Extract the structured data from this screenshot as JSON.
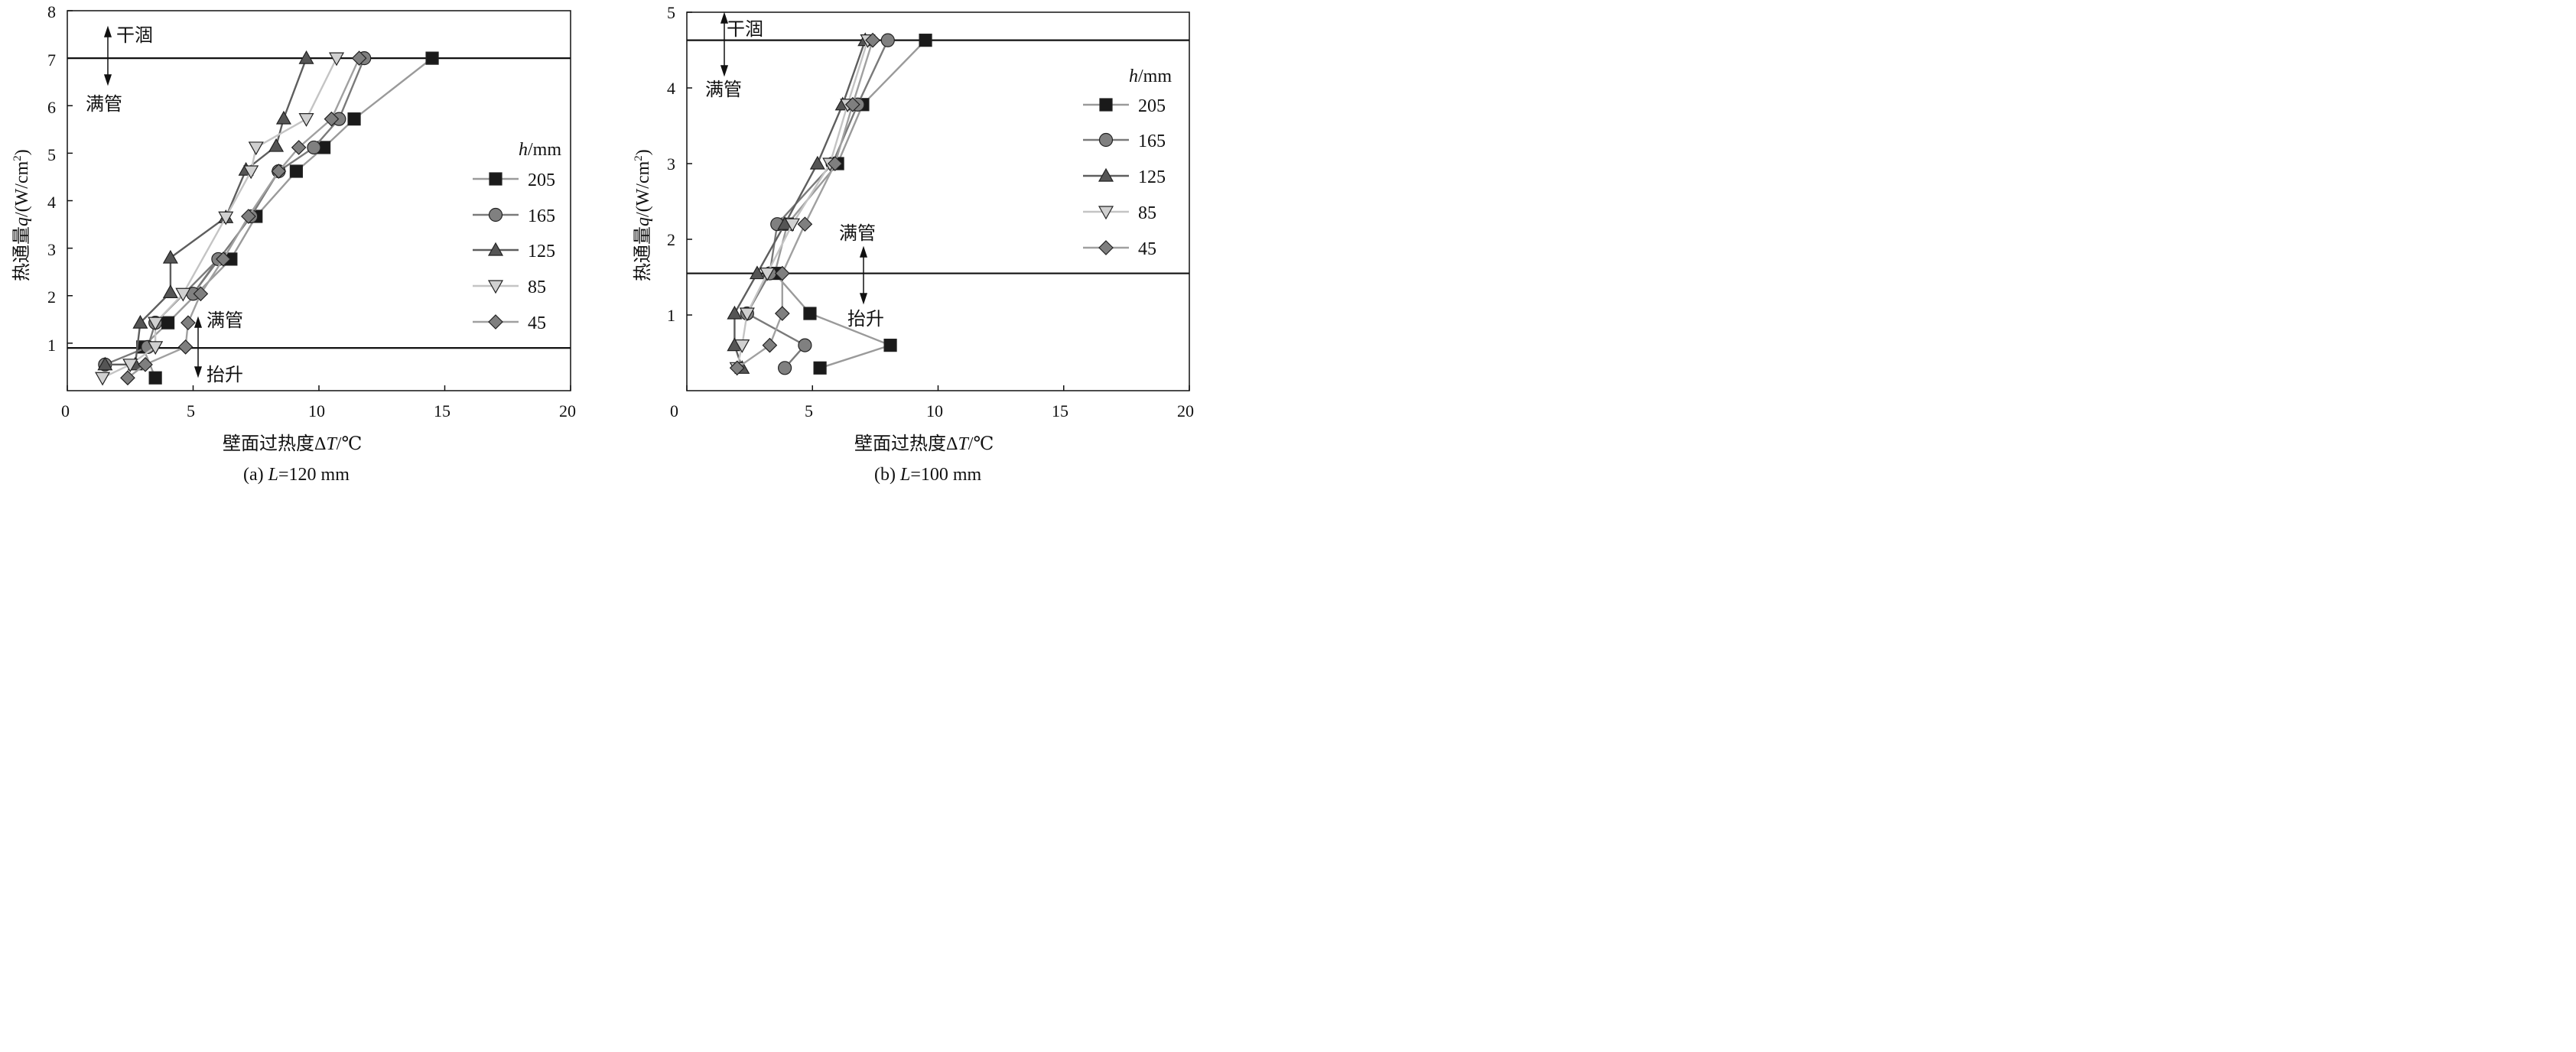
{
  "colors": {
    "205": "#1a1a1a",
    "165": "#808080",
    "125": "#555555",
    "85": "#d0d0d0",
    "45": "#7f7f7f",
    "line205": "#9a9a9a",
    "line165": "#7a7a7a",
    "line125": "#5e5e5e",
    "line85": "#c4c4c4",
    "line45": "#a0a0a0"
  },
  "chart_data": [
    {
      "type": "line",
      "caption": "(a) L=120 mm",
      "caption_prefix": "(a) ",
      "caption_L": "L",
      "caption_rest": "=120 mm",
      "xlabel": "壁面过热度ΔT/℃",
      "xlabel_cn": "壁面过热度",
      "xlabel_delta": "Δ",
      "xlabel_T": "T",
      "xlabel_unit": "/℃",
      "ylabel": "热通量q/(W/cm²)",
      "ylabel_cn": "热通量",
      "ylabel_q": "q",
      "ylabel_unit": "/(W/cm",
      "ylabel_sup": "2",
      "ylabel_close": ")",
      "xlim": [
        0,
        20
      ],
      "ylim": [
        0,
        8
      ],
      "xticks": [
        "0",
        "5",
        "10",
        "15",
        "20"
      ],
      "yticks": [
        "1",
        "2",
        "3",
        "4",
        "5",
        "6",
        "7",
        "8"
      ],
      "legend_title_h": "h",
      "legend_title_unit": "/mm",
      "legend_position": "right",
      "hlines": [
        7.0,
        0.9
      ],
      "annotations": {
        "dryout": "干涸",
        "full_upper": "满管",
        "full_lower": "满管",
        "lift": "抬升"
      },
      "series": [
        {
          "name": "205",
          "marker": "square",
          "points": [
            [
              3.5,
              0.27
            ],
            [
              3.0,
              0.92
            ],
            [
              4.0,
              1.43
            ],
            [
              6.5,
              2.77
            ],
            [
              7.5,
              3.67
            ],
            [
              9.1,
              4.62
            ],
            [
              10.2,
              5.12
            ],
            [
              11.4,
              5.72
            ],
            [
              14.5,
              7.0
            ]
          ]
        },
        {
          "name": "165",
          "marker": "circle",
          "points": [
            [
              1.5,
              0.55
            ],
            [
              3.2,
              0.92
            ],
            [
              3.5,
              1.43
            ],
            [
              6.0,
              2.77
            ],
            [
              5.0,
              2.04
            ],
            [
              7.3,
              3.67
            ],
            [
              8.4,
              4.62
            ],
            [
              9.8,
              5.12
            ],
            [
              10.8,
              5.72
            ],
            [
              11.8,
              7.0
            ]
          ]
        },
        {
          "name": "125",
          "marker": "triangle-up",
          "points": [
            [
              1.5,
              0.55
            ],
            [
              2.7,
              0.55
            ],
            [
              2.9,
              1.43
            ],
            [
              4.1,
              2.07
            ],
            [
              4.1,
              2.8
            ],
            [
              6.3,
              3.65
            ],
            [
              7.1,
              4.65
            ],
            [
              8.3,
              5.15
            ],
            [
              8.6,
              5.73
            ],
            [
              9.5,
              7.0
            ]
          ]
        },
        {
          "name": "85",
          "marker": "triangle-down",
          "points": [
            [
              1.4,
              0.27
            ],
            [
              2.5,
              0.55
            ],
            [
              3.5,
              0.92
            ],
            [
              3.5,
              1.43
            ],
            [
              4.6,
              2.04
            ],
            [
              6.3,
              3.65
            ],
            [
              7.3,
              4.62
            ],
            [
              7.5,
              5.12
            ],
            [
              9.5,
              5.72
            ],
            [
              10.7,
              7.0
            ]
          ]
        },
        {
          "name": "45",
          "marker": "diamond",
          "points": [
            [
              2.4,
              0.27
            ],
            [
              3.1,
              0.55
            ],
            [
              4.7,
              0.92
            ],
            [
              4.8,
              1.43
            ],
            [
              5.3,
              2.04
            ],
            [
              6.2,
              2.77
            ],
            [
              7.2,
              3.67
            ],
            [
              8.4,
              4.62
            ],
            [
              9.2,
              5.12
            ],
            [
              10.5,
              5.72
            ],
            [
              11.6,
              7.0
            ]
          ]
        }
      ]
    },
    {
      "type": "line",
      "caption": "(b) L=100 mm",
      "caption_prefix": "(b) ",
      "caption_L": "L",
      "caption_rest": "=100 mm",
      "xlabel": "壁面过热度ΔT/℃",
      "xlabel_cn": "壁面过热度",
      "xlabel_delta": "Δ",
      "xlabel_T": "T",
      "xlabel_unit": "/℃",
      "ylabel": "热通量q/(W/cm²)",
      "ylabel_cn": "热通量",
      "ylabel_q": "q",
      "ylabel_unit": "/(W/cm",
      "ylabel_sup": "2",
      "ylabel_close": ")",
      "xlim": [
        0,
        20
      ],
      "ylim": [
        0,
        5
      ],
      "xticks": [
        "0",
        "5",
        "10",
        "15",
        "20"
      ],
      "yticks": [
        "1",
        "2",
        "3",
        "4",
        "5"
      ],
      "legend_title_h": "h",
      "legend_title_unit": "/mm",
      "legend_position": "right",
      "hlines": [
        4.63,
        1.55
      ],
      "annotations": {
        "dryout": "干涸",
        "full_upper": "满管",
        "full_lower": "满管",
        "lift": "抬升"
      },
      "series": [
        {
          "name": "205",
          "marker": "square",
          "points": [
            [
              5.3,
              0.3
            ],
            [
              8.1,
              0.6
            ],
            [
              4.9,
              1.02
            ],
            [
              3.5,
              1.55
            ],
            [
              4.0,
              2.2
            ],
            [
              6.0,
              3.0
            ],
            [
              7.0,
              3.78
            ],
            [
              9.5,
              4.63
            ]
          ]
        },
        {
          "name": "165",
          "marker": "circle",
          "points": [
            [
              3.9,
              0.3
            ],
            [
              4.7,
              0.6
            ],
            [
              2.4,
              1.02
            ],
            [
              3.3,
              1.55
            ],
            [
              3.6,
              2.2
            ],
            [
              5.8,
              3.0
            ],
            [
              6.8,
              3.78
            ],
            [
              8.0,
              4.63
            ]
          ]
        },
        {
          "name": "125",
          "marker": "triangle-up",
          "points": [
            [
              2.2,
              0.3
            ],
            [
              1.9,
              0.6
            ],
            [
              1.9,
              1.02
            ],
            [
              2.8,
              1.55
            ],
            [
              3.9,
              2.2
            ],
            [
              5.2,
              3.0
            ],
            [
              6.2,
              3.78
            ],
            [
              7.1,
              4.63
            ]
          ]
        },
        {
          "name": "85",
          "marker": "triangle-down",
          "points": [
            [
              2.0,
              0.3
            ],
            [
              2.2,
              0.6
            ],
            [
              2.4,
              1.02
            ],
            [
              3.2,
              1.55
            ],
            [
              4.2,
              2.2
            ],
            [
              5.7,
              3.0
            ],
            [
              6.4,
              3.78
            ],
            [
              7.2,
              4.63
            ]
          ]
        },
        {
          "name": "45",
          "marker": "diamond",
          "points": [
            [
              2.0,
              0.3
            ],
            [
              3.3,
              0.6
            ],
            [
              3.8,
              1.02
            ],
            [
              3.8,
              1.55
            ],
            [
              4.7,
              2.2
            ],
            [
              5.9,
              3.0
            ],
            [
              6.6,
              3.78
            ],
            [
              7.4,
              4.63
            ]
          ]
        }
      ]
    }
  ]
}
